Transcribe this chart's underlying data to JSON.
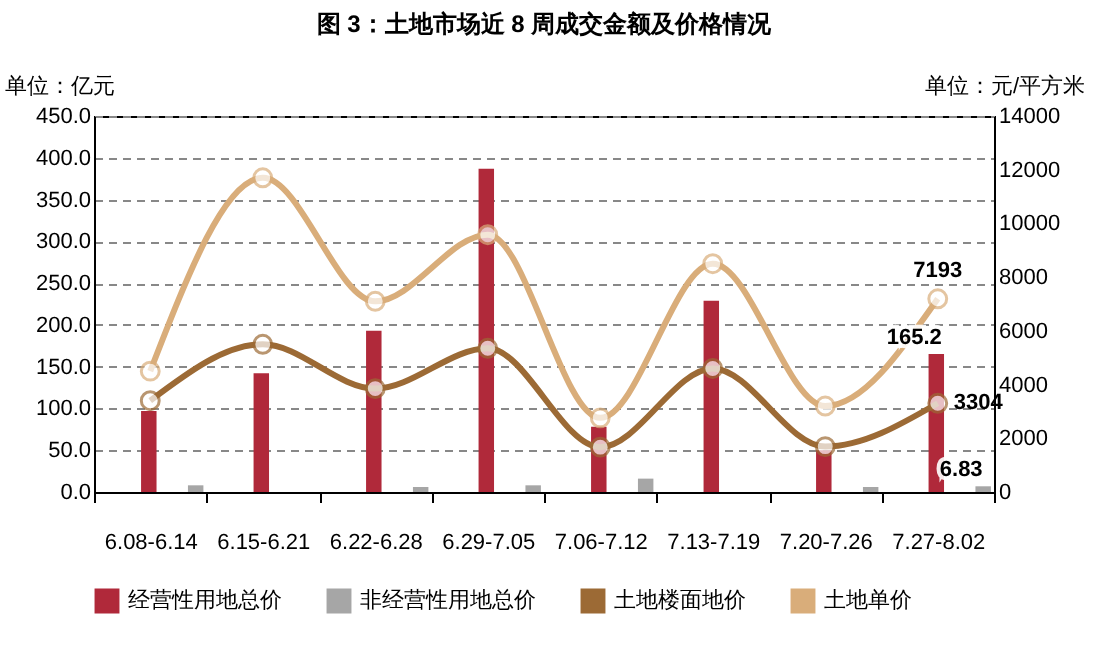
{
  "chart_data": {
    "type": "bar",
    "title": "图 3：土地市场近 8 周成交金额及价格情况",
    "ylabel": "单位：亿元",
    "y2label": "单位：元/平方米",
    "categories": [
      "6.08-6.14",
      "6.15-6.21",
      "6.22-6.28",
      "6.29-7.05",
      "7.06-7.12",
      "7.13-7.19",
      "7.20-7.26",
      "7.27-8.02"
    ],
    "series": [
      {
        "name": "经营性用地总价",
        "color": "#b0293a",
        "values": [
          97,
          142,
          193,
          387,
          78,
          229,
          50,
          165.2
        ],
        "value_labels": [
          null,
          null,
          null,
          null,
          null,
          null,
          null,
          "165.2"
        ]
      },
      {
        "name": "非经营性用地总价",
        "color": "#a6a6a6",
        "values": [
          8,
          null,
          6,
          8,
          16,
          null,
          6,
          6.83
        ],
        "value_labels": [
          null,
          null,
          null,
          null,
          null,
          null,
          null,
          "6.83"
        ]
      },
      {
        "name": "土地楼面地价",
        "type": "line",
        "axis": "y2",
        "color": "#9c6a35",
        "values": [
          3400,
          5500,
          3850,
          5350,
          1670,
          4600,
          1690,
          3304
        ],
        "value_labels": [
          null,
          null,
          null,
          null,
          null,
          null,
          null,
          "3304"
        ]
      },
      {
        "name": "土地单价",
        "type": "line",
        "axis": "y2",
        "color": "#d9ad7a",
        "values": [
          4500,
          11700,
          7100,
          9580,
          2760,
          8500,
          3200,
          7193
        ],
        "value_labels": [
          null,
          null,
          null,
          null,
          null,
          null,
          null,
          "7193"
        ]
      }
    ],
    "ylim": [
      0,
      450
    ],
    "yticks": [
      {
        "value": 0,
        "label": "0.0"
      },
      {
        "value": 50,
        "label": "50.0"
      },
      {
        "value": 100,
        "label": "100.0"
      },
      {
        "value": 150,
        "label": "150.0"
      },
      {
        "value": 200,
        "label": "200.0"
      },
      {
        "value": 250,
        "label": "250.0"
      },
      {
        "value": 300,
        "label": "300.0"
      },
      {
        "value": 350,
        "label": "350.0"
      },
      {
        "value": 400,
        "label": "400.0"
      },
      {
        "value": 450,
        "label": "450.0"
      }
    ],
    "y2lim": [
      0,
      14000
    ],
    "y2ticks": [
      0,
      2000,
      4000,
      6000,
      8000,
      10000,
      12000,
      14000
    ],
    "grid": "y",
    "legend": "bottom",
    "marker": "circle",
    "line_style": "solid"
  }
}
